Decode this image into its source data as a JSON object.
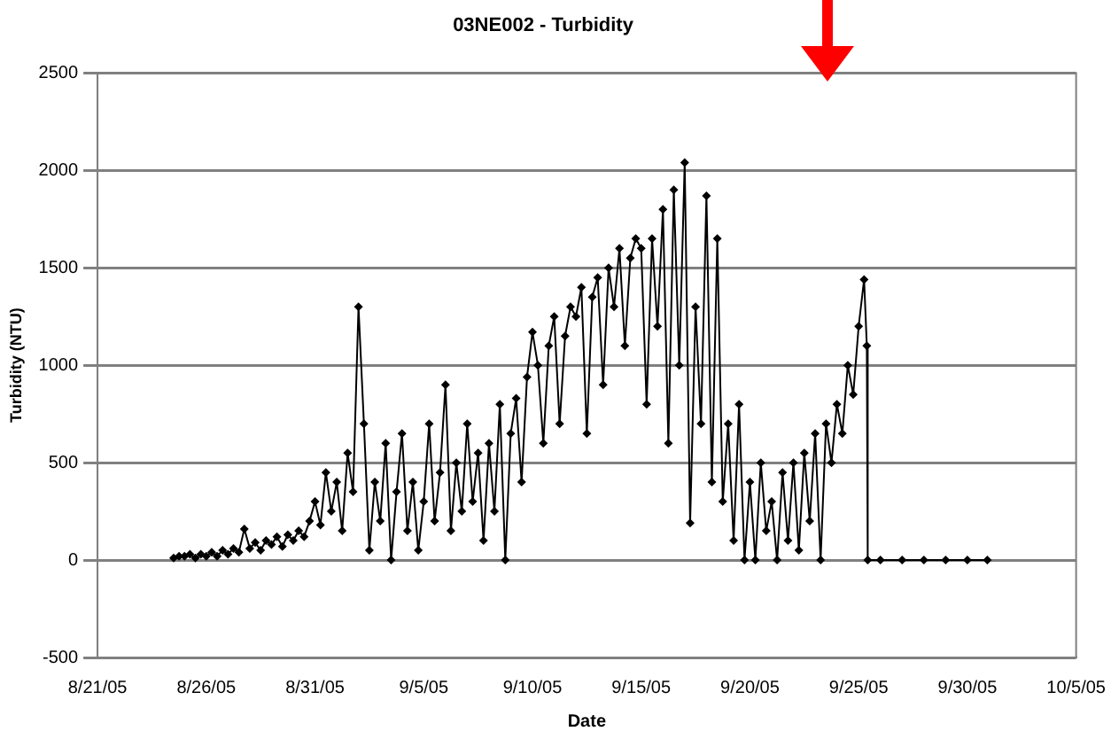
{
  "chart_data": {
    "type": "line",
    "title": "03NE002 - Turbidity",
    "xlabel": "Date",
    "ylabel": "Turbidity (NTU)",
    "x": [
      "--08-24T12:00",
      "--08-24T18:00",
      "--08-25T00:00",
      "--08-25T06:00",
      "--08-25T12:00",
      "--08-25T18:00",
      "--08-26T00:00",
      "--08-26T06:00",
      "--08-26T12:00",
      "--08-26T18:00",
      "--08-27T00:00",
      "--08-27T06:00",
      "--08-27T12:00",
      "--08-27T18:00",
      "--08-28T00:00",
      "--08-28T06:00",
      "--08-28T12:00",
      "--08-28T18:00",
      "--08-29T00:00",
      "--08-29T06:00",
      "--08-29T12:00",
      "--08-29T18:00",
      "--08-30T00:00",
      "--08-30T06:00",
      "--08-30T12:00",
      "--08-30T18:00",
      "--08-31T00:00",
      "--08-31T06:00",
      "--08-31T12:00",
      "--08-31T18:00",
      "--09-01T00:00",
      "--09-01T06:00",
      "--09-01T12:00",
      "--09-01T18:00",
      "--09-02T00:00",
      "--09-02T06:00",
      "--09-02T12:00",
      "--09-02T18:00",
      "--09-03T00:00",
      "--09-03T06:00",
      "--09-03T12:00",
      "--09-03T18:00",
      "--09-04T00:00",
      "--09-04T06:00",
      "--09-04T12:00",
      "--09-04T18:00",
      "--09-05T00:00",
      "--09-05T06:00",
      "--09-05T12:00",
      "--09-05T18:00",
      "--09-06T00:00",
      "--09-06T06:00",
      "--09-06T12:00",
      "--09-06T18:00",
      "--09-07T00:00",
      "--09-07T06:00",
      "--09-07T12:00",
      "--09-07T18:00",
      "--09-08T00:00",
      "--09-08T06:00",
      "--09-08T12:00",
      "--09-08T18:00",
      "--09-09T00:00",
      "--09-09T06:00",
      "--09-09T12:00",
      "--09-09T18:00",
      "--09-10T00:00",
      "--09-10T06:00",
      "--09-10T12:00",
      "--09-10T18:00",
      "--09-11T00:00",
      "--09-11T06:00",
      "--09-11T12:00",
      "--09-11T18:00",
      "--09-12T00:00",
      "--09-12T06:00",
      "--09-12T12:00",
      "--09-12T18:00",
      "--09-13T00:00",
      "--09-13T06:00",
      "--09-13T12:00",
      "--09-13T18:00",
      "--09-14T00:00",
      "--09-14T06:00",
      "--09-14T12:00",
      "--09-14T18:00",
      "--09-15T00:00",
      "--09-15T06:00",
      "--09-15T12:00",
      "--09-15T18:00",
      "--09-16T00:00",
      "--09-16T06:00",
      "--09-16T12:00",
      "--09-16T18:00",
      "--09-17T00:00",
      "--09-17T06:00",
      "--09-17T12:00",
      "--09-17T18:00",
      "--09-18T00:00",
      "--09-18T06:00",
      "--09-18T12:00",
      "--09-18T18:00",
      "--09-19T00:00",
      "--09-19T06:00",
      "--09-19T12:00",
      "--09-19T18:00",
      "--09-20T00:00",
      "--09-20T06:00",
      "--09-20T12:00",
      "--09-20T18:00",
      "--09-21T00:00",
      "--09-21T06:00",
      "--09-21T12:00",
      "--09-21T18:00",
      "--09-22T00:00",
      "--09-22T06:00",
      "--09-22T12:00",
      "--09-22T18:00",
      "--09-23T00:00",
      "--09-23T06:00",
      "--09-23T12:00",
      "--09-23T18:00",
      "--09-24T00:00",
      "--09-24T06:00",
      "--09-24T12:00",
      "--09-24T18:00",
      "--09-25T00:00",
      "--09-25T06:00",
      "--09-25T09:00",
      "--09-25T10:00",
      "--09-26T00:00",
      "--09-27T00:00",
      "--09-28T00:00",
      "--09-29T00:00",
      "--09-30T00:00",
      "--09-30T22:00"
    ],
    "series": [
      {
        "color": "#000000",
        "values": [
          10,
          20,
          20,
          30,
          10,
          30,
          20,
          40,
          20,
          50,
          30,
          60,
          40,
          160,
          60,
          90,
          50,
          100,
          80,
          120,
          70,
          130,
          100,
          150,
          120,
          200,
          300,
          180,
          450,
          250,
          400,
          150,
          550,
          350,
          1300,
          700,
          50,
          400,
          200,
          600,
          0,
          350,
          650,
          150,
          400,
          50,
          300,
          700,
          200,
          450,
          900,
          150,
          500,
          250,
          700,
          300,
          550,
          100,
          600,
          250,
          800,
          0,
          650,
          830,
          400,
          940,
          1170,
          1000,
          600,
          1100,
          1250,
          700,
          1150,
          1300,
          1250,
          1400,
          650,
          1350,
          1450,
          900,
          1500,
          1300,
          1600,
          1100,
          1550,
          1650,
          1600,
          800,
          1650,
          1200,
          1800,
          600,
          1900,
          1000,
          2040,
          190,
          1300,
          700,
          1870,
          400,
          1650,
          300,
          700,
          100,
          800,
          0,
          400,
          0,
          500,
          150,
          300,
          0,
          450,
          100,
          500,
          50,
          550,
          200,
          650,
          0,
          700,
          500,
          800,
          650,
          1000,
          850,
          1200,
          1440,
          1100,
          0,
          0,
          0,
          0,
          0,
          0,
          0
        ]
      }
    ],
    "xlim": [
      "--08-21",
      "--10-05"
    ],
    "xticks": [
      {
        "value": "--08-21",
        "label": "8/21/05"
      },
      {
        "value": "--08-26",
        "label": "8/26/05"
      },
      {
        "value": "--08-31",
        "label": "8/31/05"
      },
      {
        "value": "--09-05",
        "label": "9/5/05"
      },
      {
        "value": "--09-10",
        "label": "9/10/05"
      },
      {
        "value": "--09-15",
        "label": "9/15/05"
      },
      {
        "value": "--09-20",
        "label": "9/20/05"
      },
      {
        "value": "--09-25",
        "label": "9/25/05"
      },
      {
        "value": "--09-30",
        "label": "9/30/05"
      },
      {
        "value": "--10-05",
        "label": "10/5/05"
      }
    ],
    "ylim": [
      -500,
      2500
    ],
    "yticks": [
      -500,
      0,
      500,
      1000,
      1500,
      2000,
      2500
    ],
    "grid": "y",
    "legend": false,
    "marker": "diamond",
    "line_style": "solid"
  }
}
